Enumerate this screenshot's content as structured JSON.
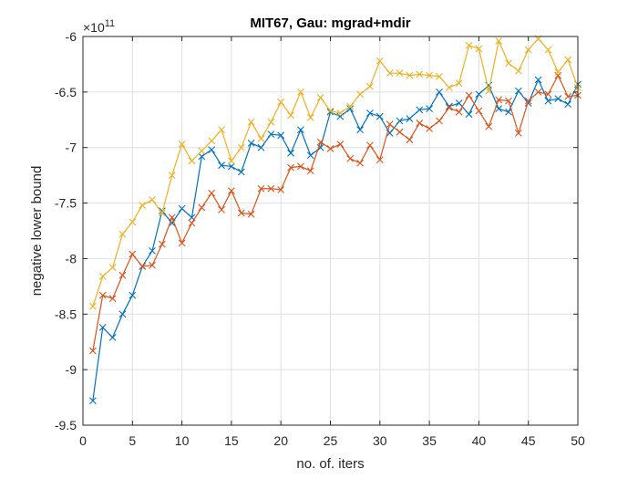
{
  "chart_data": {
    "type": "line",
    "title": "MIT67, Gau: mgrad+mdir",
    "xlabel": "no. of. iters",
    "ylabel": "negative lower bound",
    "y_exponent_label": "×10",
    "y_exponent_power": "11",
    "xlim": [
      0,
      50
    ],
    "ylim": [
      -9.5,
      -6
    ],
    "xticks": [
      0,
      5,
      10,
      15,
      20,
      25,
      30,
      35,
      40,
      45,
      50
    ],
    "yticks": [
      -9.5,
      -9,
      -8.5,
      -8,
      -7.5,
      -7,
      -6.5,
      -6
    ],
    "grid": true,
    "marker": "x",
    "x": [
      1,
      2,
      3,
      4,
      5,
      6,
      7,
      8,
      9,
      10,
      11,
      12,
      13,
      14,
      15,
      16,
      17,
      18,
      19,
      20,
      21,
      22,
      23,
      24,
      25,
      26,
      27,
      28,
      29,
      30,
      31,
      32,
      33,
      34,
      35,
      36,
      37,
      38,
      39,
      40,
      41,
      42,
      43,
      44,
      45,
      46,
      47,
      48,
      49,
      50
    ],
    "series": [
      {
        "color": "#0072bd",
        "values": [
          -9.28,
          -8.62,
          -8.71,
          -8.5,
          -8.33,
          -8.07,
          -7.93,
          -7.57,
          -7.68,
          -7.55,
          -7.63,
          -7.08,
          -7.02,
          -7.16,
          -7.17,
          -7.22,
          -6.96,
          -7.0,
          -6.88,
          -6.89,
          -7.05,
          -6.84,
          -7.07,
          -7.0,
          -6.68,
          -6.72,
          -6.65,
          -6.84,
          -6.69,
          -6.72,
          -6.87,
          -6.76,
          -6.74,
          -6.66,
          -6.65,
          -6.5,
          -6.63,
          -6.6,
          -6.7,
          -6.52,
          -6.44,
          -6.65,
          -6.68,
          -6.49,
          -6.6,
          -6.39,
          -6.58,
          -6.56,
          -6.61,
          -6.43
        ]
      },
      {
        "color": "#d95319",
        "values": [
          -8.83,
          -8.33,
          -8.36,
          -8.15,
          -7.96,
          -8.07,
          -8.06,
          -7.87,
          -7.63,
          -7.86,
          -7.68,
          -7.54,
          -7.41,
          -7.56,
          -7.39,
          -7.59,
          -7.6,
          -7.37,
          -7.37,
          -7.38,
          -7.18,
          -7.17,
          -7.21,
          -6.95,
          -7.01,
          -6.97,
          -7.1,
          -7.14,
          -6.98,
          -7.11,
          -6.79,
          -6.86,
          -6.93,
          -6.78,
          -6.83,
          -6.76,
          -6.64,
          -6.68,
          -6.53,
          -6.67,
          -6.81,
          -6.57,
          -6.58,
          -6.87,
          -6.58,
          -6.5,
          -6.52,
          -6.35,
          -6.54,
          -6.53
        ]
      },
      {
        "color": "#edb120",
        "values": [
          -8.43,
          -8.16,
          -8.08,
          -7.78,
          -7.67,
          -7.52,
          -7.47,
          -7.59,
          -7.25,
          -6.97,
          -7.12,
          -7.03,
          -6.94,
          -6.84,
          -7.12,
          -7.0,
          -6.77,
          -6.92,
          -6.77,
          -6.59,
          -6.71,
          -6.5,
          -6.73,
          -6.55,
          -6.67,
          -6.69,
          -6.63,
          -6.52,
          -6.45,
          -6.22,
          -6.33,
          -6.33,
          -6.35,
          -6.34,
          -6.35,
          -6.36,
          -6.46,
          -6.42,
          -6.08,
          -6.11,
          -6.49,
          -6.04,
          -6.24,
          -6.31,
          -6.12,
          -6.02,
          -6.12,
          -6.32,
          -6.21,
          -6.46
        ]
      }
    ]
  }
}
